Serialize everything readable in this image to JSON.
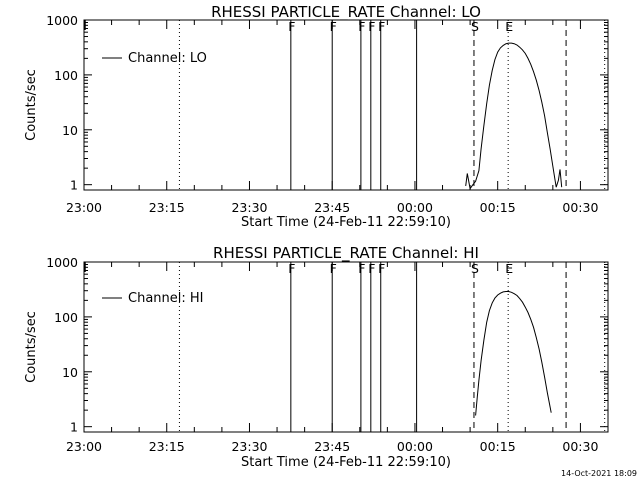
{
  "footer": {
    "timestamp": "14-Oct-2021 18:09"
  },
  "chart_data": [
    {
      "type": "line",
      "title": "RHESSI PARTICLE_RATE Channel: LO",
      "xlabel": "Start Time (24-Feb-11 22:59:10)",
      "ylabel": "Counts/sec",
      "yscale": "log",
      "ylim": [
        0.8,
        1000
      ],
      "xlim_minutes": [
        0,
        95
      ],
      "x_ticks": [
        {
          "t": 0,
          "label": "23:00"
        },
        {
          "t": 15,
          "label": "23:15"
        },
        {
          "t": 30,
          "label": "23:30"
        },
        {
          "t": 45,
          "label": "23:45"
        },
        {
          "t": 60,
          "label": "00:00"
        },
        {
          "t": 75,
          "label": "00:15"
        },
        {
          "t": 90,
          "label": "00:30"
        }
      ],
      "y_ticks": [
        {
          "v": 1,
          "label": "1"
        },
        {
          "v": 10,
          "label": "10"
        },
        {
          "v": 100,
          "label": "100"
        },
        {
          "v": 1000,
          "label": "1000"
        }
      ],
      "legend": {
        "label": "Channel: LO",
        "position": "top-left"
      },
      "markers": [
        {
          "t": 17.3,
          "style": "dotted",
          "label": ""
        },
        {
          "t": 37.5,
          "style": "solid",
          "label": "F"
        },
        {
          "t": 45,
          "style": "solid",
          "label": "F"
        },
        {
          "t": 50.2,
          "style": "solid",
          "label": "F"
        },
        {
          "t": 52,
          "style": "solid",
          "label": "F"
        },
        {
          "t": 53.8,
          "style": "solid",
          "label": "F"
        },
        {
          "t": 60.3,
          "style": "solid",
          "label": ""
        },
        {
          "t": 70.7,
          "style": "dashed",
          "label": "S"
        },
        {
          "t": 76.9,
          "style": "dotted",
          "label": "E"
        },
        {
          "t": 87.4,
          "style": "dashed",
          "label": ""
        },
        {
          "t": 94.4,
          "style": "dotted",
          "label": ""
        }
      ],
      "series": [
        {
          "name": "Channel: LO",
          "x": [
            69.2,
            69.5,
            70.0,
            70.5,
            71.0,
            71.6,
            72.0,
            72.5,
            73.0,
            73.5,
            74.0,
            74.5,
            75.0,
            75.5,
            76.0,
            76.5,
            77.0,
            77.5,
            78.0,
            78.5,
            79.0,
            79.5,
            80.0,
            80.5,
            81.0,
            81.5,
            82.0,
            82.5,
            83.0,
            83.5,
            84.0,
            84.5,
            85.0,
            85.3,
            85.6,
            86.0,
            86.3,
            86.6
          ],
          "y": [
            0.95,
            1.6,
            0.85,
            1.0,
            1.15,
            1.8,
            4.5,
            12,
            30,
            65,
            120,
            190,
            260,
            310,
            345,
            370,
            380,
            380,
            370,
            350,
            320,
            285,
            245,
            200,
            155,
            115,
            80,
            52,
            32,
            18,
            9,
            4.5,
            2.2,
            1.4,
            0.9,
            1.2,
            1.9,
            0.9
          ]
        }
      ]
    },
    {
      "type": "line",
      "title": "RHESSI PARTICLE_RATE Channel: HI",
      "xlabel": "Start Time (24-Feb-11 22:59:10)",
      "ylabel": "Counts/sec",
      "yscale": "log",
      "ylim": [
        0.8,
        1000
      ],
      "xlim_minutes": [
        0,
        95
      ],
      "x_ticks": [
        {
          "t": 0,
          "label": "23:00"
        },
        {
          "t": 15,
          "label": "23:15"
        },
        {
          "t": 30,
          "label": "23:30"
        },
        {
          "t": 45,
          "label": "23:45"
        },
        {
          "t": 60,
          "label": "00:00"
        },
        {
          "t": 75,
          "label": "00:15"
        },
        {
          "t": 90,
          "label": "00:30"
        }
      ],
      "y_ticks": [
        {
          "v": 1,
          "label": "1"
        },
        {
          "v": 10,
          "label": "10"
        },
        {
          "v": 100,
          "label": "100"
        },
        {
          "v": 1000,
          "label": "1000"
        }
      ],
      "legend": {
        "label": "Channel: HI",
        "position": "top-left"
      },
      "markers": [
        {
          "t": 17.3,
          "style": "dotted",
          "label": ""
        },
        {
          "t": 37.5,
          "style": "solid",
          "label": "F"
        },
        {
          "t": 45,
          "style": "solid",
          "label": "F"
        },
        {
          "t": 50.2,
          "style": "solid",
          "label": "F"
        },
        {
          "t": 52,
          "style": "solid",
          "label": "F"
        },
        {
          "t": 53.8,
          "style": "solid",
          "label": "F"
        },
        {
          "t": 60.3,
          "style": "solid",
          "label": ""
        },
        {
          "t": 70.7,
          "style": "dashed",
          "label": "S"
        },
        {
          "t": 76.9,
          "style": "dotted",
          "label": "E"
        },
        {
          "t": 87.4,
          "style": "dashed",
          "label": ""
        },
        {
          "t": 94.4,
          "style": "dotted",
          "label": ""
        }
      ],
      "series": [
        {
          "name": "Channel: HI",
          "x": [
            71.0,
            71.3,
            71.6,
            72.0,
            72.5,
            73.0,
            73.5,
            74.0,
            74.5,
            75.0,
            75.5,
            76.0,
            76.5,
            77.0,
            77.5,
            78.0,
            78.5,
            79.0,
            79.5,
            80.0,
            80.5,
            81.0,
            81.5,
            82.0,
            82.5,
            83.0,
            83.5,
            84.0,
            84.4,
            84.7
          ],
          "y": [
            1.6,
            3.5,
            7,
            16,
            38,
            80,
            130,
            180,
            220,
            250,
            270,
            285,
            290,
            290,
            280,
            265,
            245,
            215,
            185,
            150,
            120,
            90,
            65,
            42,
            26,
            15,
            8,
            4.2,
            2.6,
            1.8
          ]
        }
      ]
    }
  ]
}
